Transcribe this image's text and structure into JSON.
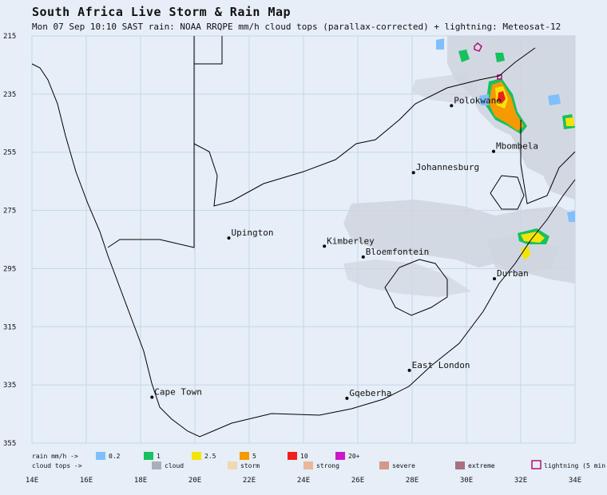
{
  "header": {
    "title": "South Africa Live Storm & Rain Map",
    "subtitle": "Mon 07 Sep 10:10 SAST   rain: NOAA RRQPE mm/h   cloud tops (parallax-corrected) + lightning: Meteosat-12"
  },
  "axes": {
    "lat_ticks": [
      "215",
      "235",
      "255",
      "275",
      "295",
      "315",
      "335",
      "355"
    ],
    "lon_ticks": [
      "14E",
      "16E",
      "18E",
      "20E",
      "22E",
      "24E",
      "26E",
      "28E",
      "30E",
      "32E",
      "34E"
    ]
  },
  "cities": [
    {
      "name": "Polokwane",
      "lon": 29.45,
      "lat": 23.9
    },
    {
      "name": "Mbombela",
      "lon": 31.0,
      "lat": 25.47
    },
    {
      "name": "Johannesburg",
      "lon": 28.05,
      "lat": 26.2
    },
    {
      "name": "Upington",
      "lon": 21.25,
      "lat": 28.45
    },
    {
      "name": "Kimberley",
      "lon": 24.77,
      "lat": 28.73
    },
    {
      "name": "Bloemfontein",
      "lon": 26.2,
      "lat": 29.1
    },
    {
      "name": "Durban",
      "lon": 31.03,
      "lat": 29.85
    },
    {
      "name": "East London",
      "lon": 27.9,
      "lat": 33.0
    },
    {
      "name": "Cape Town",
      "lon": 18.42,
      "lat": 33.92
    },
    {
      "name": "Gqeberha",
      "lon": 25.6,
      "lat": 33.96
    }
  ],
  "legend": {
    "rain_label": "rain mm/h ->",
    "rain_items": [
      {
        "label": "0.2",
        "color": "#7fbfff"
      },
      {
        "label": "1",
        "color": "#17c060"
      },
      {
        "label": "2.5",
        "color": "#f5e400"
      },
      {
        "label": "5",
        "color": "#f59a00"
      },
      {
        "label": "10",
        "color": "#f02020"
      },
      {
        "label": "20+",
        "color": "#c818c8"
      }
    ],
    "cloud_label": "cloud tops ->",
    "cloud_items": [
      {
        "label": "cloud",
        "color": "#a8b0bc"
      },
      {
        "label": "storm",
        "color": "#f0d8b0"
      },
      {
        "label": "strong",
        "color": "#e8b898"
      },
      {
        "label": "severe",
        "color": "#d49888"
      },
      {
        "label": "extreme",
        "color": "#a87080"
      }
    ],
    "lightning_label": "lightning (5 min",
    "lightning_color": "#b0107a"
  },
  "colors": {
    "background": "#e6eef8",
    "grid": "#c8d6e6",
    "border": "#000000",
    "cloud": "#cdd3dc"
  }
}
